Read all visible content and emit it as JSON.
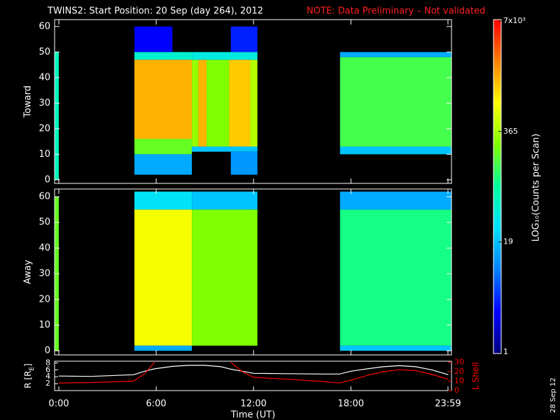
{
  "title": "TWINS2: Start Position: 20 Sep (day 264), 2012",
  "note": "NOTE: Data Preliminary – Not validated",
  "date_stamp": "28 Sep 12",
  "colorbar": {
    "label": "LOG₁₀(Counts per Scan)",
    "log": true,
    "lim": [
      1,
      7000
    ],
    "ticks": [
      1,
      19,
      365,
      {
        "value": 7000,
        "label": "7x10³"
      }
    ],
    "colormap": [
      "#000080",
      "#0000ff",
      "#0080ff",
      "#00e0ff",
      "#00ffa0",
      "#80ff00",
      "#ffff00",
      "#ff8000",
      "#ff0000"
    ]
  },
  "chart_data": [
    {
      "type": "heatmap",
      "ylabel": "Toward",
      "xlim": [
        -0.26,
        24.2
      ],
      "ylim": [
        -1.4,
        62.7
      ],
      "yticks": [
        0,
        10,
        20,
        30,
        40,
        50,
        60
      ],
      "xticks": [
        0,
        6,
        12,
        18,
        23.983
      ],
      "segments": [
        {
          "x0": -0.26,
          "x1": 0,
          "y0": 0,
          "y1": 50,
          "value": 60
        },
        {
          "x0": 4.66,
          "x1": 8.2,
          "y0": 16,
          "y1": 47,
          "value": 1500
        },
        {
          "x0": 4.66,
          "x1": 8.2,
          "y0": 10,
          "y1": 16,
          "value": 200
        },
        {
          "x0": 4.66,
          "x1": 8.2,
          "y0": 47,
          "y1": 50,
          "value": 50
        },
        {
          "x0": 4.66,
          "x1": 8.2,
          "y0": 2,
          "y1": 10,
          "value": 15
        },
        {
          "x0": 4.66,
          "x1": 7,
          "y0": 50,
          "y1": 60,
          "value": 3
        },
        {
          "x0": 8.2,
          "x1": 8.6,
          "y0": 13,
          "y1": 47,
          "value": 300
        },
        {
          "x0": 8.6,
          "x1": 9.1,
          "y0": 13,
          "y1": 47,
          "value": 1500
        },
        {
          "x0": 9.1,
          "x1": 10.5,
          "y0": 13,
          "y1": 47,
          "value": 250
        },
        {
          "x0": 10.5,
          "x1": 11.8,
          "y0": 13,
          "y1": 47,
          "value": 1200
        },
        {
          "x0": 11.8,
          "x1": 12.24,
          "y0": 13,
          "y1": 47,
          "value": 400
        },
        {
          "x0": 8.2,
          "x1": 12.24,
          "y0": 47,
          "y1": 50,
          "value": 40
        },
        {
          "x0": 8.2,
          "x1": 12.24,
          "y0": 11,
          "y1": 13,
          "value": 20
        },
        {
          "x0": 10.6,
          "x1": 12.24,
          "y0": 2,
          "y1": 11,
          "value": 12
        },
        {
          "x0": 10.6,
          "x1": 12.24,
          "y0": 50,
          "y1": 60,
          "value": 4
        },
        {
          "x0": 17.33,
          "x1": 24.2,
          "y0": 13,
          "y1": 48,
          "value": 150
        },
        {
          "x0": 17.33,
          "x1": 24.2,
          "y0": 10,
          "y1": 13,
          "value": 20
        },
        {
          "x0": 17.33,
          "x1": 24.2,
          "y0": 48,
          "y1": 50,
          "value": 15
        }
      ]
    },
    {
      "type": "heatmap",
      "ylabel": "Away",
      "xlim": [
        -0.26,
        24.2
      ],
      "ylim": [
        -1.6,
        63
      ],
      "yticks": [
        0,
        10,
        20,
        30,
        40,
        50,
        60
      ],
      "xticks": [
        0,
        6,
        12,
        18,
        23.983
      ],
      "segments": [
        {
          "x0": -0.26,
          "x1": 0,
          "y0": 0,
          "y1": 60,
          "value": 200
        },
        {
          "x0": 4.66,
          "x1": 8.2,
          "y0": 2,
          "y1": 55,
          "value": 700
        },
        {
          "x0": 4.66,
          "x1": 8.2,
          "y0": 55,
          "y1": 62,
          "value": 30
        },
        {
          "x0": 4.66,
          "x1": 8.2,
          "y0": 0,
          "y1": 2,
          "value": 15
        },
        {
          "x0": 8.2,
          "x1": 12.24,
          "y0": 2,
          "y1": 55,
          "value": 250
        },
        {
          "x0": 8.2,
          "x1": 12.24,
          "y0": 55,
          "y1": 62,
          "value": 20
        },
        {
          "x0": 17.33,
          "x1": 24.2,
          "y0": 2,
          "y1": 55,
          "value": 100
        },
        {
          "x0": 17.33,
          "x1": 24.2,
          "y0": 55,
          "y1": 62,
          "value": 15
        },
        {
          "x0": 17.33,
          "x1": 24.2,
          "y0": 0,
          "y1": 2,
          "value": 20
        }
      ]
    },
    {
      "type": "line",
      "ylabel_parts": [
        "R [R",
        "E",
        "]"
      ],
      "y2label": "L Shell",
      "xlabel": "Time (UT)",
      "xlim": [
        -0.26,
        24.2
      ],
      "ylim": [
        0,
        8.5
      ],
      "yticks": [
        2,
        4,
        6,
        8
      ],
      "y2lim": [
        0,
        31
      ],
      "y2ticks": [
        0,
        10,
        20,
        30
      ],
      "xticks": [
        {
          "value": 0,
          "label": "0:00"
        },
        {
          "value": 6,
          "label": "6:00"
        },
        {
          "value": 12,
          "label": "12:00"
        },
        {
          "value": 18,
          "label": "18:00"
        },
        {
          "value": 23.983,
          "label": "23:59"
        }
      ],
      "x": [
        0,
        2,
        4.6,
        5.3,
        5.9,
        7,
        8,
        9,
        10,
        10.6,
        11.3,
        12,
        14,
        16,
        17.3,
        18,
        19,
        20,
        21,
        22,
        23,
        24
      ],
      "series": [
        {
          "name": "R",
          "color": "#ffffff",
          "values": [
            4.2,
            4.1,
            4.6,
            5.6,
            6.3,
            7.0,
            7.3,
            7.3,
            6.9,
            6.2,
            5.6,
            5.0,
            4.9,
            4.8,
            4.8,
            5.6,
            6.3,
            6.9,
            7.2,
            6.9,
            6.0,
            4.6
          ]
        },
        {
          "name": "L Shell",
          "color": "#ff0000",
          "axis": "y2",
          "values": [
            8,
            8.5,
            10,
            18,
            30,
            null,
            null,
            null,
            null,
            30,
            20,
            14,
            12,
            10,
            8,
            11,
            16,
            20,
            22,
            21,
            17,
            12
          ]
        }
      ]
    }
  ]
}
